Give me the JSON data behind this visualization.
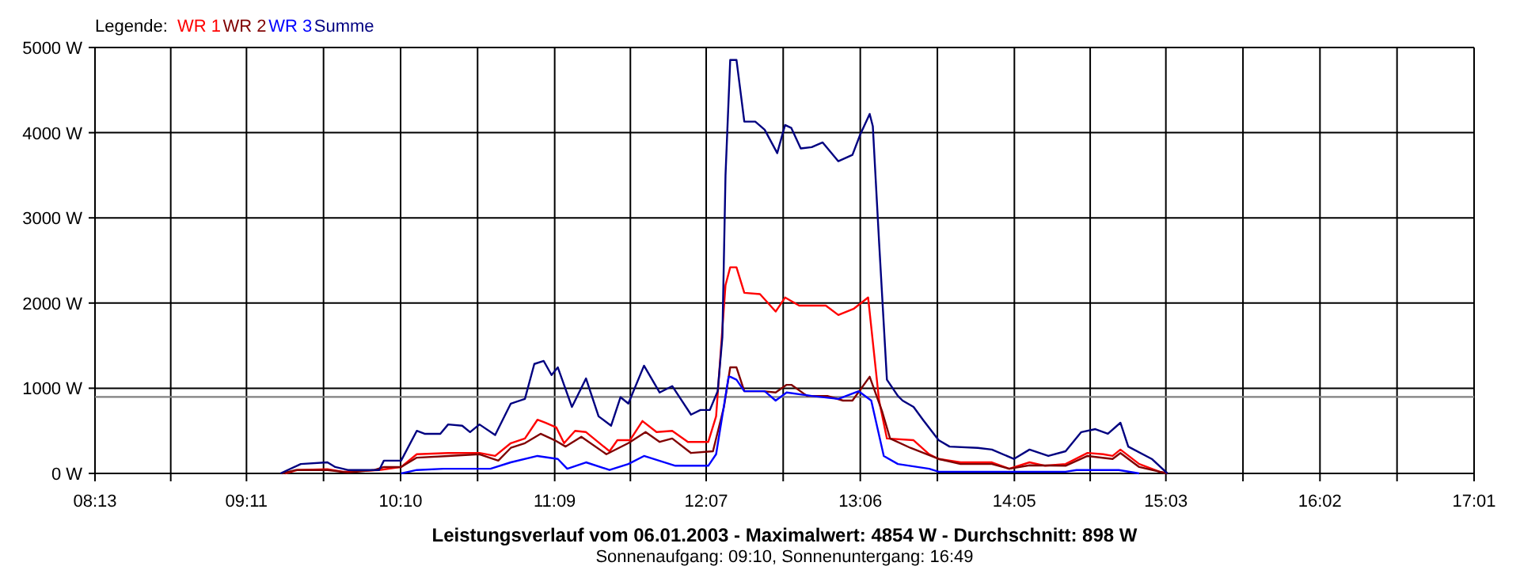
{
  "chart_data": {
    "type": "line",
    "title": "Leistungsverlauf vom 06.01.2003 - Maximalwert: 4854 W - Durchschnitt: 898 W",
    "subtitle": "Sonnenaufgang: 09:10, Sonnenuntergang: 16:49",
    "legend_title": "Legende:",
    "legend": "top left",
    "grid": true,
    "line_style": "solid",
    "xlim": [
      8.2167,
      17.0167
    ],
    "ylim": [
      0,
      5000
    ],
    "xticks": [
      {
        "value": 8.2167,
        "label": "08:13"
      },
      {
        "value": 8.7,
        "label": null
      },
      {
        "value": 9.1833,
        "label": "09:11"
      },
      {
        "value": 9.675,
        "label": null
      },
      {
        "value": 10.1667,
        "label": "10:10"
      },
      {
        "value": 10.658,
        "label": null
      },
      {
        "value": 11.15,
        "label": "11:09"
      },
      {
        "value": 11.633,
        "label": null
      },
      {
        "value": 12.1167,
        "label": "12:07"
      },
      {
        "value": 12.608,
        "label": null
      },
      {
        "value": 13.1,
        "label": "13:06"
      },
      {
        "value": 13.592,
        "label": null
      },
      {
        "value": 14.0833,
        "label": "14:05"
      },
      {
        "value": 14.567,
        "label": null
      },
      {
        "value": 15.05,
        "label": "15:03"
      },
      {
        "value": 15.542,
        "label": null
      },
      {
        "value": 16.0333,
        "label": "16:02"
      },
      {
        "value": 16.525,
        "label": null
      },
      {
        "value": 17.0167,
        "label": "17:01"
      }
    ],
    "yticks": [
      {
        "value": 0,
        "label": "0 W"
      },
      {
        "value": 1000,
        "label": "1000 W"
      },
      {
        "value": 2000,
        "label": "2000 W"
      },
      {
        "value": 3000,
        "label": "3000 W"
      },
      {
        "value": 4000,
        "label": "4000 W"
      },
      {
        "value": 5000,
        "label": "5000 W"
      }
    ],
    "ref_lines": [
      {
        "axis": "y",
        "value": 898,
        "color": "#808080"
      }
    ],
    "series": [
      {
        "name": "WR 1",
        "color": "#ff0000",
        "x": [
          9.43,
          9.51,
          9.7,
          9.8,
          10.03,
          10.17,
          10.27,
          10.47,
          10.67,
          10.77,
          10.87,
          10.96,
          11.04,
          11.09,
          11.16,
          11.21,
          11.28,
          11.35,
          11.5,
          11.55,
          11.63,
          11.71,
          11.8,
          11.9,
          12.0,
          12.13,
          12.18,
          12.24,
          12.27,
          12.31,
          12.36,
          12.46,
          12.56,
          12.62,
          12.71,
          12.88,
          12.96,
          13.06,
          13.15,
          13.22,
          13.27,
          13.44,
          13.54,
          13.6,
          13.74,
          13.94,
          14.05,
          14.18,
          14.28,
          14.41,
          14.55,
          14.65,
          14.71,
          14.76,
          14.88,
          15.01,
          15.06
        ],
        "values": [
          0,
          40,
          50,
          20,
          40,
          75,
          225,
          240,
          240,
          205,
          355,
          410,
          630,
          595,
          540,
          355,
          500,
          485,
          260,
          390,
          390,
          615,
          485,
          500,
          370,
          370,
          670,
          2210,
          2420,
          2420,
          2120,
          2105,
          1900,
          2065,
          1970,
          1970,
          1860,
          1935,
          2065,
          855,
          410,
          390,
          225,
          170,
          130,
          130,
          55,
          130,
          90,
          110,
          240,
          225,
          205,
          280,
          110,
          20,
          0
        ]
      },
      {
        "name": "WR 2",
        "color": "#800000",
        "x": [
          9.41,
          9.5,
          9.7,
          9.83,
          10.0,
          10.06,
          10.17,
          10.27,
          10.47,
          10.67,
          10.79,
          10.87,
          10.96,
          11.06,
          11.15,
          11.22,
          11.32,
          11.48,
          11.62,
          11.73,
          11.82,
          11.9,
          12.02,
          12.16,
          12.23,
          12.27,
          12.31,
          12.36,
          12.48,
          12.56,
          12.63,
          12.66,
          12.76,
          12.89,
          12.99,
          13.05,
          13.16,
          13.24,
          13.29,
          13.42,
          13.6,
          13.74,
          13.94,
          14.05,
          14.18,
          14.41,
          14.55,
          14.71,
          14.76,
          14.88,
          15.01,
          15.06
        ],
        "values": [
          0,
          40,
          40,
          10,
          40,
          75,
          75,
          185,
          205,
          225,
          150,
          300,
          355,
          465,
          390,
          315,
          430,
          225,
          355,
          485,
          370,
          410,
          240,
          260,
          780,
          1245,
          1245,
          965,
          965,
          950,
          1040,
          1040,
          910,
          910,
          855,
          855,
          1135,
          725,
          410,
          300,
          170,
          110,
          110,
          55,
          95,
          90,
          205,
          170,
          240,
          75,
          20,
          0
        ]
      },
      {
        "name": "WR 3",
        "color": "#0000ff",
        "x": [
          10.17,
          10.27,
          10.44,
          10.74,
          10.87,
          11.04,
          11.17,
          11.23,
          11.35,
          11.5,
          11.62,
          11.72,
          11.92,
          12.13,
          12.18,
          12.26,
          12.27,
          12.31,
          12.36,
          12.49,
          12.56,
          12.63,
          12.79,
          12.96,
          13.09,
          13.17,
          13.25,
          13.34,
          13.54,
          13.6,
          14.41,
          14.48,
          14.75,
          14.88
        ],
        "values": [
          0,
          40,
          55,
          55,
          130,
          205,
          170,
          55,
          130,
          40,
          110,
          205,
          90,
          90,
          225,
          1135,
          1135,
          1100,
          965,
          965,
          855,
          950,
          910,
          875,
          965,
          855,
          205,
          110,
          55,
          20,
          20,
          40,
          40,
          0
        ]
      },
      {
        "name": "Summe",
        "color": "#000080",
        "x": [
          9.4,
          9.53,
          9.7,
          9.75,
          9.83,
          10.03,
          10.06,
          10.17,
          10.27,
          10.32,
          10.42,
          10.47,
          10.56,
          10.61,
          10.67,
          10.77,
          10.87,
          10.96,
          11.02,
          11.08,
          11.13,
          11.17,
          11.26,
          11.35,
          11.43,
          11.51,
          11.57,
          11.62,
          11.72,
          11.82,
          11.9,
          12.02,
          12.08,
          12.14,
          12.19,
          12.22,
          12.24,
          12.27,
          12.31,
          12.36,
          12.43,
          12.49,
          12.57,
          12.62,
          12.66,
          12.72,
          12.79,
          12.86,
          12.96,
          13.05,
          13.1,
          13.16,
          13.18,
          13.22,
          13.27,
          13.34,
          13.37,
          13.44,
          13.5,
          13.6,
          13.67,
          13.85,
          13.94,
          14.08,
          14.18,
          14.3,
          14.41,
          14.51,
          14.6,
          14.68,
          14.76,
          14.81,
          14.96,
          15.06
        ],
        "values": [
          0,
          110,
          130,
          75,
          40,
          40,
          150,
          150,
          500,
          465,
          465,
          575,
          560,
          485,
          575,
          450,
          820,
          875,
          1285,
          1320,
          1155,
          1245,
          780,
          1115,
          670,
          560,
          895,
          820,
          1265,
          950,
          1025,
          690,
          745,
          745,
          965,
          1600,
          3500,
          4854,
          4854,
          4130,
          4130,
          4035,
          3760,
          4090,
          4055,
          3815,
          3830,
          3885,
          3665,
          3740,
          3980,
          4220,
          4075,
          2715,
          1100,
          910,
          855,
          780,
          630,
          390,
          315,
          300,
          280,
          170,
          280,
          205,
          260,
          485,
          520,
          465,
          595,
          315,
          170,
          0
        ]
      }
    ]
  }
}
